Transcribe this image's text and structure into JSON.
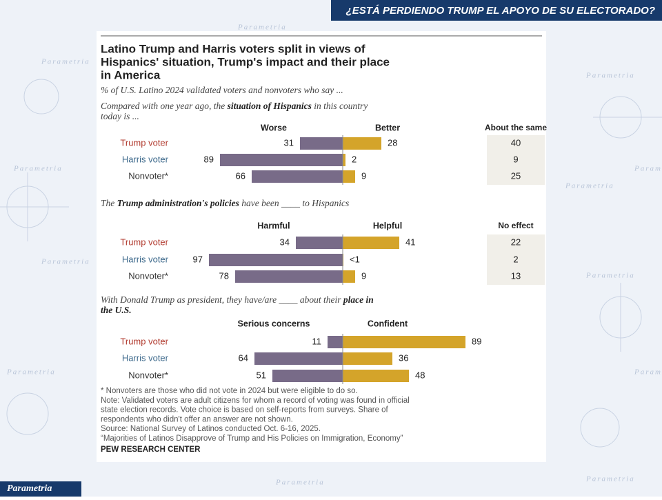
{
  "banner": "¿ESTÁ PERDIENDO TRUMP EL APOYO DE SU ELECTORADO?",
  "logo": "Parametria",
  "watermark": "Parametria",
  "title_lines": [
    "Latino Trump and Harris voters split in views of",
    "Hispanics' situation, Trump's impact and their place",
    "in America"
  ],
  "subtitle": "% of U.S. Latino 2024 validated voters and nonvoters who say ...",
  "category_colors": [
    "#b13a2e",
    "#3e6a8c",
    "#333333"
  ],
  "chart_data": [
    {
      "type": "diverging_bar",
      "question_lines": [
        [
          {
            "text": "Compared with one year ago, the ",
            "bold": false
          },
          {
            "text": "situation of Hispanics",
            "bold": true
          },
          {
            "text": " in this country",
            "bold": false
          }
        ],
        [
          {
            "text": "today is ...",
            "bold": false
          }
        ]
      ],
      "categories": [
        "Trump voter",
        "Harris voter",
        "Nonvoter*"
      ],
      "series": [
        {
          "name": "Worse",
          "color": "#786b88",
          "values": [
            31,
            89,
            66
          ]
        },
        {
          "name": "Better",
          "color": "#d4a42a",
          "values": [
            28,
            2,
            9
          ]
        }
      ],
      "extra_column": {
        "name": "About the same",
        "values": [
          40,
          9,
          25
        ]
      }
    },
    {
      "type": "diverging_bar",
      "question_lines": [
        [
          {
            "text": "The ",
            "bold": false
          },
          {
            "text": "Trump administration's policies",
            "bold": true
          },
          {
            "text": " have been ____ to Hispanics",
            "bold": false
          }
        ]
      ],
      "categories": [
        "Trump voter",
        "Harris voter",
        "Nonvoter*"
      ],
      "series": [
        {
          "name": "Harmful",
          "color": "#786b88",
          "values": [
            34,
            97,
            78
          ]
        },
        {
          "name": "Helpful",
          "color": "#d4a42a",
          "values": [
            41,
            0.5,
            9
          ],
          "value_labels": [
            "41",
            "<1",
            "9"
          ]
        }
      ],
      "extra_column": {
        "name": "No effect",
        "values": [
          22,
          2,
          13
        ]
      }
    },
    {
      "type": "diverging_bar",
      "question_lines": [
        [
          {
            "text": "With Donald Trump as president, they have/are ____ about their ",
            "bold": false
          },
          {
            "text": "place in",
            "bold": true
          }
        ],
        [
          {
            "text": "the U.S.",
            "bold": true
          }
        ]
      ],
      "categories": [
        "Trump voter",
        "Harris voter",
        "Nonvoter*"
      ],
      "series": [
        {
          "name": "Serious concerns",
          "color": "#786b88",
          "values": [
            11,
            64,
            51
          ]
        },
        {
          "name": "Confident",
          "color": "#d4a42a",
          "values": [
            89,
            36,
            48
          ]
        }
      ]
    }
  ],
  "notes": [
    "* Nonvoters are those who did not vote in 2024 but were eligible to do so.",
    "Note: Validated voters are adult citizens for whom a record of voting was found in official",
    "state election records. Vote choice is based on self-reports from surveys. Share of",
    "respondents who didn't offer an answer are not shown.",
    "Source: National Survey of Latinos conducted Oct. 6-16, 2025.",
    "“Majorities of Latinos Disapprove of Trump and His Policies on Immigration, Economy”"
  ],
  "source_org": "PEW RESEARCH CENTER"
}
